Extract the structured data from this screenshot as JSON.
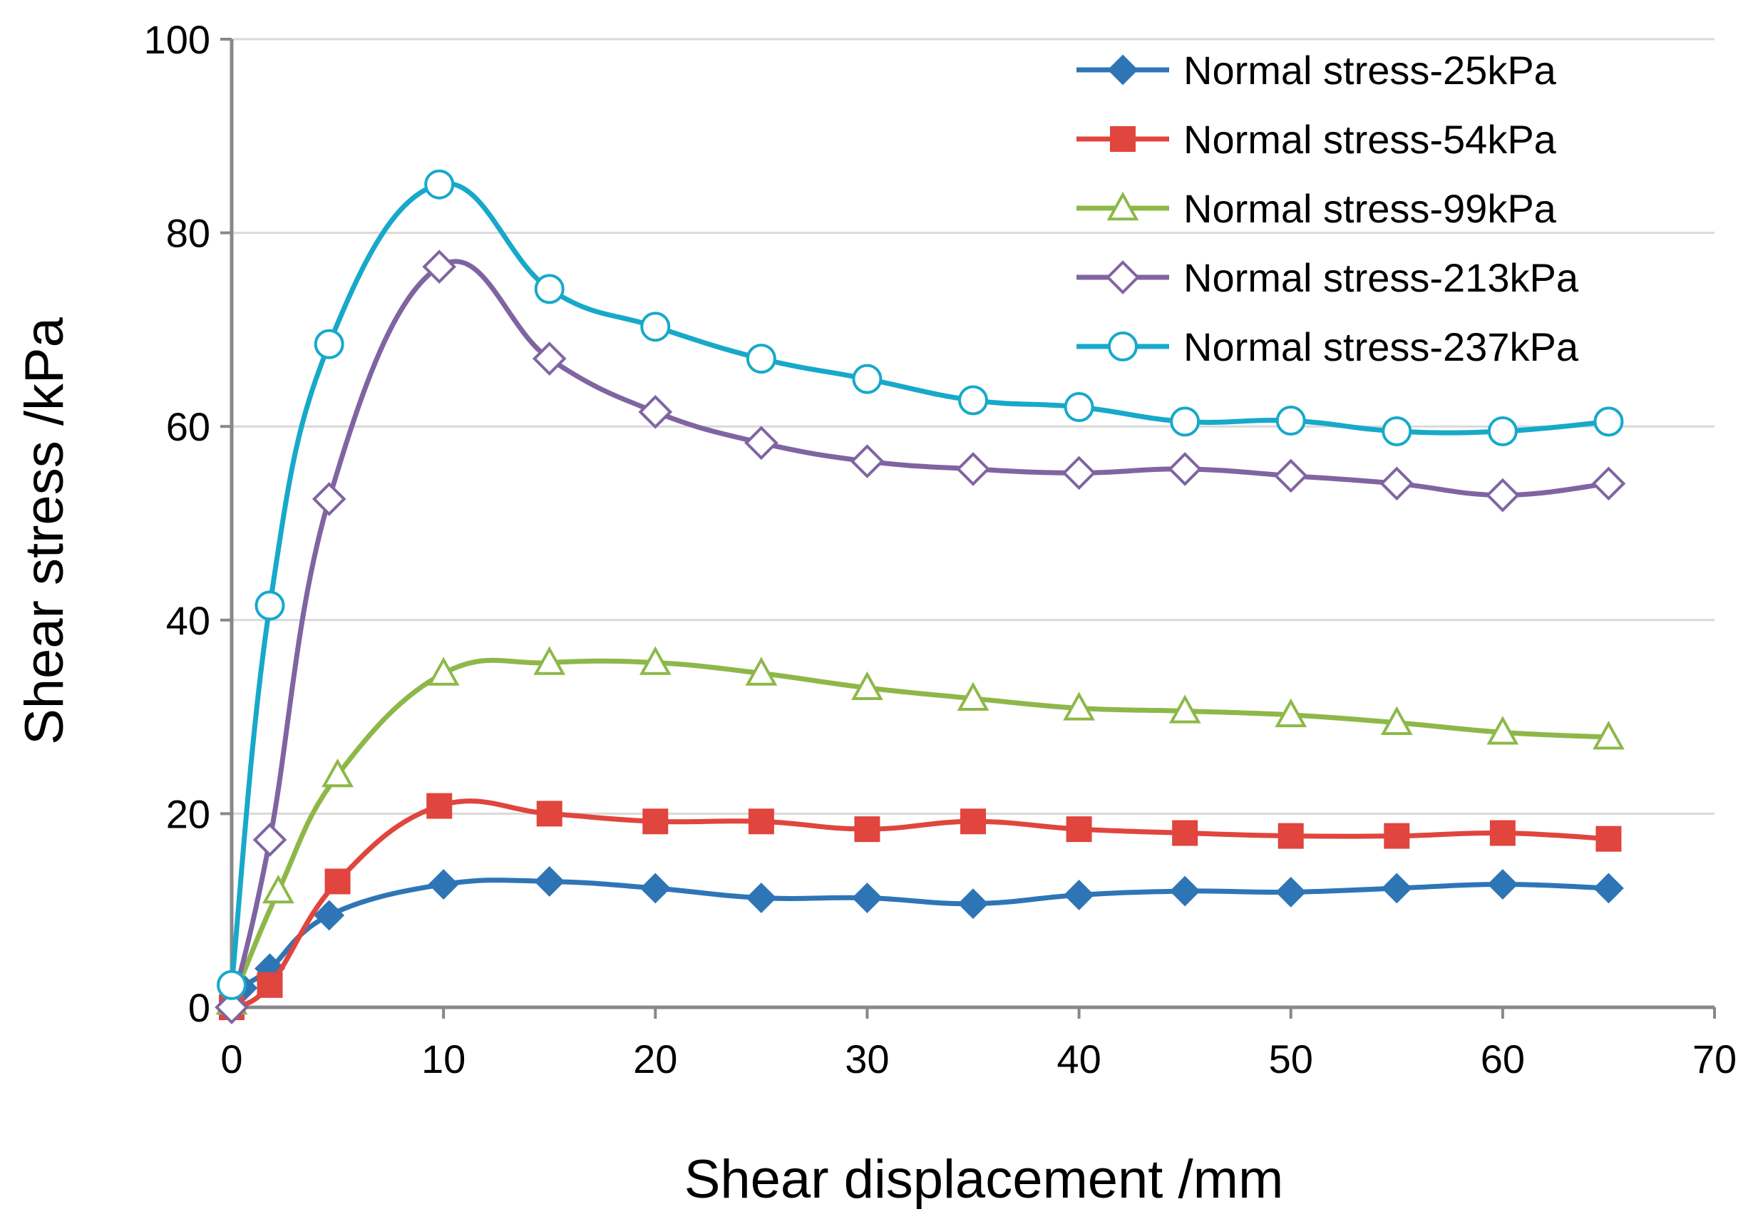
{
  "chart_data": {
    "type": "line",
    "title": "",
    "xlabel": "Shear displacement /mm",
    "ylabel": "Shear stress /kPa",
    "xlim": [
      0,
      70
    ],
    "ylim": [
      0,
      100
    ],
    "xticks": [
      0,
      10,
      20,
      30,
      40,
      50,
      60,
      70
    ],
    "yticks": [
      0,
      20,
      40,
      60,
      80,
      100
    ],
    "xtick_labels": [
      "0",
      "10",
      "20",
      "30",
      "40",
      "50",
      "60",
      "70"
    ],
    "ytick_labels": [
      "0",
      "20",
      "40",
      "60",
      "80",
      "100"
    ],
    "grid": "horizontal",
    "legend_position": "top-right",
    "series": [
      {
        "name": "Normal stress-25kPa",
        "color": "#2e75b6",
        "marker": "filled-diamond",
        "x": [
          0,
          0.5,
          1.8,
          4.6,
          10,
          15,
          20,
          25,
          30,
          35,
          40,
          45,
          50,
          55,
          60,
          65
        ],
        "y": [
          0,
          2,
          4,
          9.5,
          12.7,
          13,
          12.3,
          11.3,
          11.3,
          10.7,
          11.6,
          12,
          11.9,
          12.3,
          12.7,
          12.3
        ]
      },
      {
        "name": "Normal stress-54kPa",
        "color": "#e0453e",
        "marker": "filled-square",
        "x": [
          0,
          1.8,
          5,
          9.8,
          15,
          20,
          25,
          30,
          35,
          40,
          45,
          50,
          55,
          60,
          65
        ],
        "y": [
          0,
          2.3,
          13,
          20.8,
          20,
          19.2,
          19.2,
          18.4,
          19.2,
          18.4,
          18,
          17.7,
          17.7,
          18,
          17.4
        ]
      },
      {
        "name": "Normal stress-99kPa",
        "color": "#8db849",
        "marker": "open-triangle",
        "x": [
          0,
          2.2,
          5,
          10,
          15,
          20,
          25,
          30,
          35,
          40,
          45,
          50,
          55,
          60,
          65
        ],
        "y": [
          0.5,
          12,
          24,
          34.5,
          35.6,
          35.6,
          34.5,
          33,
          31.9,
          30.9,
          30.6,
          30.2,
          29.4,
          28.4,
          27.9
        ]
      },
      {
        "name": "Normal stress-213kPa",
        "color": "#8064a2",
        "marker": "open-diamond",
        "x": [
          0,
          1.8,
          4.6,
          9.8,
          15,
          20,
          25,
          30,
          35,
          40,
          45,
          50,
          55,
          60,
          65
        ],
        "y": [
          0,
          17.3,
          52.5,
          76.5,
          67,
          61.5,
          58.3,
          56.4,
          55.6,
          55.2,
          55.6,
          54.9,
          54.1,
          52.9,
          54.1
        ]
      },
      {
        "name": "Normal stress-237kPa",
        "color": "#17a9c9",
        "marker": "open-circle",
        "x": [
          0,
          1.8,
          4.6,
          9.8,
          15,
          20,
          25,
          30,
          35,
          40,
          45,
          50,
          55,
          60,
          65
        ],
        "y": [
          2.3,
          41.5,
          68.5,
          85,
          74.2,
          70.3,
          67,
          64.9,
          62.7,
          62,
          60.5,
          60.6,
          59.5,
          59.5,
          60.5
        ]
      }
    ]
  }
}
